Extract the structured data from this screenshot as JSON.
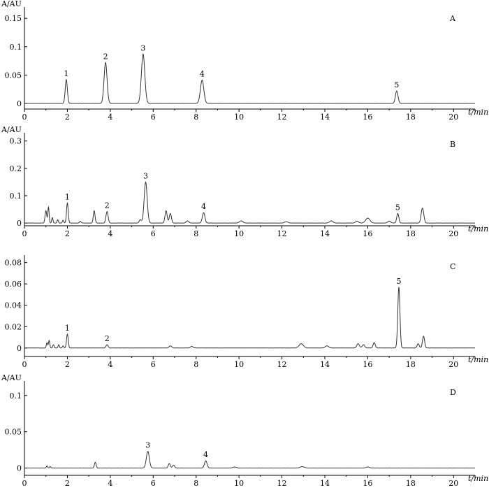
{
  "chart_data": [
    {
      "type": "line",
      "panel": "A",
      "ylabel": "A/AU",
      "xlabel": "t/min",
      "xlim": [
        0,
        21
      ],
      "ylim": [
        -0.01,
        0.17
      ],
      "xticks": [
        0,
        2,
        4,
        6,
        8,
        10,
        12,
        14,
        16,
        18,
        20
      ],
      "yticks": [
        0,
        0.05,
        0.1,
        0.15
      ],
      "ytick_labels": [
        "0",
        "0.05",
        "0.1",
        "0.15"
      ],
      "peaks": [
        {
          "label": "1",
          "rt": 1.95,
          "height": 0.042,
          "width": 0.05
        },
        {
          "label": "2",
          "rt": 3.78,
          "height": 0.072,
          "width": 0.07
        },
        {
          "label": "3",
          "rt": 5.53,
          "height": 0.087,
          "width": 0.08
        },
        {
          "label": "4",
          "rt": 8.28,
          "height": 0.041,
          "width": 0.08
        },
        {
          "label": "5",
          "rt": 17.35,
          "height": 0.022,
          "width": 0.06
        }
      ],
      "minor_peaks": []
    },
    {
      "type": "line",
      "panel": "B",
      "ylabel": "A/AU",
      "xlabel": "t/min",
      "xlim": [
        0,
        21
      ],
      "ylim": [
        -0.01,
        0.33
      ],
      "xticks": [
        0,
        2,
        4,
        6,
        8,
        10,
        12,
        14,
        16,
        18,
        20
      ],
      "yticks": [
        0,
        0.1,
        0.2,
        0.3
      ],
      "ytick_labels": [
        "0",
        "0.1",
        "0.2",
        "0.3"
      ],
      "peaks": [
        {
          "label": "1",
          "rt": 2.0,
          "height": 0.073,
          "width": 0.04
        },
        {
          "label": "2",
          "rt": 3.85,
          "height": 0.042,
          "width": 0.05
        },
        {
          "label": "3",
          "rt": 5.65,
          "height": 0.15,
          "width": 0.07
        },
        {
          "label": "4",
          "rt": 8.35,
          "height": 0.038,
          "width": 0.06
        },
        {
          "label": "5",
          "rt": 17.4,
          "height": 0.035,
          "width": 0.05
        }
      ],
      "minor_peaks": [
        {
          "rt": 1.0,
          "height": 0.045,
          "width": 0.04
        },
        {
          "rt": 1.12,
          "height": 0.058,
          "width": 0.03
        },
        {
          "rt": 1.3,
          "height": 0.02,
          "width": 0.03
        },
        {
          "rt": 1.55,
          "height": 0.012,
          "width": 0.03
        },
        {
          "rt": 1.8,
          "height": 0.01,
          "width": 0.03
        },
        {
          "rt": 2.6,
          "height": 0.006,
          "width": 0.04
        },
        {
          "rt": 3.25,
          "height": 0.045,
          "width": 0.04
        },
        {
          "rt": 5.4,
          "height": 0.012,
          "width": 0.05
        },
        {
          "rt": 6.6,
          "height": 0.045,
          "width": 0.05
        },
        {
          "rt": 6.8,
          "height": 0.035,
          "width": 0.05
        },
        {
          "rt": 7.6,
          "height": 0.008,
          "width": 0.06
        },
        {
          "rt": 10.1,
          "height": 0.008,
          "width": 0.08
        },
        {
          "rt": 12.2,
          "height": 0.005,
          "width": 0.08
        },
        {
          "rt": 14.3,
          "height": 0.008,
          "width": 0.08
        },
        {
          "rt": 15.5,
          "height": 0.007,
          "width": 0.07
        },
        {
          "rt": 16.0,
          "height": 0.018,
          "width": 0.1
        },
        {
          "rt": 17.0,
          "height": 0.007,
          "width": 0.07
        },
        {
          "rt": 18.55,
          "height": 0.055,
          "width": 0.06
        }
      ]
    },
    {
      "type": "line",
      "panel": "C",
      "ylabel": "",
      "xlabel": "t/min",
      "xlim": [
        0,
        21
      ],
      "ylim": [
        -0.008,
        0.087
      ],
      "xticks": [
        0,
        2,
        4,
        6,
        8,
        10,
        12,
        14,
        16,
        18,
        20
      ],
      "yticks": [
        0,
        0.02,
        0.04,
        0.06,
        0.08
      ],
      "ytick_labels": [
        "0",
        "0.02",
        "0.04",
        "0.06",
        "0.08"
      ],
      "peaks": [
        {
          "label": "1",
          "rt": 2.0,
          "height": 0.013,
          "width": 0.04
        },
        {
          "label": "2",
          "rt": 3.85,
          "height": 0.003,
          "width": 0.05
        },
        {
          "label": "5",
          "rt": 17.45,
          "height": 0.057,
          "width": 0.05
        }
      ],
      "minor_peaks": [
        {
          "rt": 1.05,
          "height": 0.005,
          "width": 0.03
        },
        {
          "rt": 1.15,
          "height": 0.007,
          "width": 0.03
        },
        {
          "rt": 1.35,
          "height": 0.003,
          "width": 0.03
        },
        {
          "rt": 1.6,
          "height": 0.003,
          "width": 0.03
        },
        {
          "rt": 1.8,
          "height": 0.002,
          "width": 0.03
        },
        {
          "rt": 6.8,
          "height": 0.002,
          "width": 0.06
        },
        {
          "rt": 7.8,
          "height": 0.0015,
          "width": 0.06
        },
        {
          "rt": 12.9,
          "height": 0.004,
          "width": 0.1
        },
        {
          "rt": 14.1,
          "height": 0.002,
          "width": 0.08
        },
        {
          "rt": 15.55,
          "height": 0.004,
          "width": 0.06
        },
        {
          "rt": 15.8,
          "height": 0.003,
          "width": 0.06
        },
        {
          "rt": 16.3,
          "height": 0.005,
          "width": 0.05
        },
        {
          "rt": 18.35,
          "height": 0.004,
          "width": 0.05
        },
        {
          "rt": 18.6,
          "height": 0.011,
          "width": 0.05
        }
      ]
    },
    {
      "type": "line",
      "panel": "D",
      "ylabel": "A/AU",
      "xlabel": "t/min",
      "xlim": [
        0,
        21
      ],
      "ylim": [
        -0.01,
        0.12
      ],
      "xticks": [
        0,
        2,
        4,
        6,
        8,
        10,
        12,
        14,
        16,
        18,
        20
      ],
      "yticks": [
        0,
        0.05,
        0.1
      ],
      "ytick_labels": [
        "0",
        "0.05",
        "0.1"
      ],
      "peaks": [
        {
          "label": "3",
          "rt": 5.75,
          "height": 0.023,
          "width": 0.07
        },
        {
          "label": "4",
          "rt": 8.45,
          "height": 0.01,
          "width": 0.06
        }
      ],
      "minor_peaks": [
        {
          "rt": 1.05,
          "height": 0.003,
          "width": 0.03
        },
        {
          "rt": 1.2,
          "height": 0.002,
          "width": 0.03
        },
        {
          "rt": 3.3,
          "height": 0.008,
          "width": 0.04
        },
        {
          "rt": 6.75,
          "height": 0.006,
          "width": 0.05
        },
        {
          "rt": 6.95,
          "height": 0.004,
          "width": 0.05
        },
        {
          "rt": 9.8,
          "height": 0.0015,
          "width": 0.08
        },
        {
          "rt": 12.95,
          "height": 0.002,
          "width": 0.1
        },
        {
          "rt": 16.0,
          "height": 0.0015,
          "width": 0.08
        }
      ]
    }
  ]
}
